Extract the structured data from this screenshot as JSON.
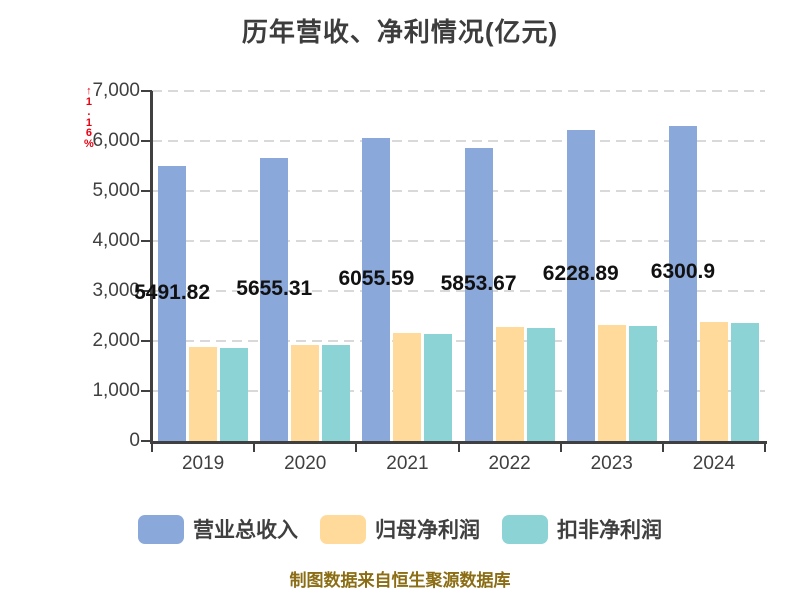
{
  "chart_data": {
    "type": "bar",
    "title": "历年营收、净利情况(亿元)",
    "source_note": "制图数据来自恒生聚源数据库",
    "watermark": "↑1.16%",
    "categories": [
      "2019",
      "2020",
      "2021",
      "2022",
      "2023",
      "2024"
    ],
    "series": [
      {
        "key": "revenue",
        "name": "营业总收入",
        "color": "#8AA8DA",
        "values": [
          5491.82,
          5655.31,
          6055.59,
          5853.67,
          6228.89,
          6300.9
        ],
        "labels": [
          "5491.82",
          "5655.31",
          "6055.59",
          "5853.67",
          "6228.89",
          "6300.9"
        ]
      },
      {
        "key": "net-profit",
        "name": "归母净利润",
        "color": "#FFDA9B",
        "values": [
          1874,
          1929,
          2166,
          2274,
          2319,
          2378
        ]
      },
      {
        "key": "deducted-net-profit",
        "name": "扣非净利润",
        "color": "#8CD3D5",
        "values": [
          1861,
          1922,
          2140,
          2266,
          2310,
          2368
        ]
      }
    ],
    "ylim": [
      0,
      7000
    ],
    "y_tick_labels": [
      "7,000",
      "6,000",
      "5,000",
      "4,000",
      "3,000",
      "2,000",
      "1,000",
      "0"
    ],
    "grid": "dashed-horizontal",
    "legend_position": "bottom",
    "colors": {
      "axis": "#404040",
      "grid": "#D9D9D9",
      "data_label": "#111111",
      "watermark_red": "#E60012",
      "source_note": "#8B6D14",
      "title": "#3D3D3D"
    }
  }
}
